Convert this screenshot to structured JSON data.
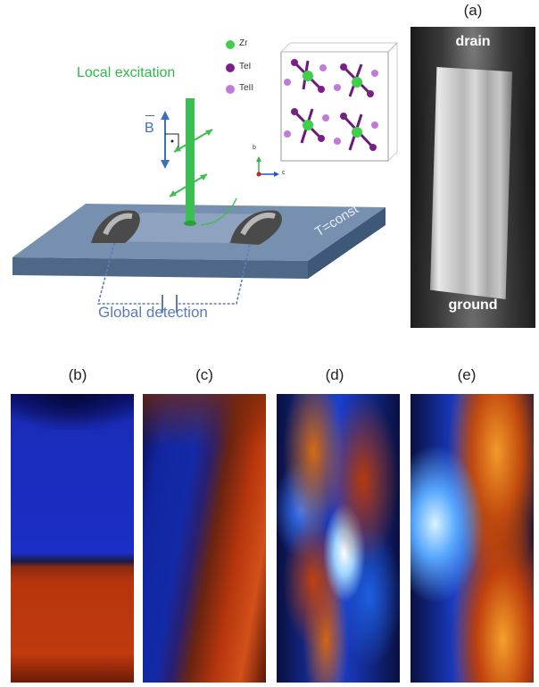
{
  "schematic": {
    "local_excitation": "Local excitation",
    "b_field": "B",
    "temperature": "T=const",
    "global_detection": "Global detection",
    "legend": {
      "zr": "Zr",
      "te1": "TeI",
      "te2": "TeII"
    },
    "axes": {
      "b": "b",
      "c": "c"
    }
  },
  "panel_a": {
    "label": "(a)",
    "drain": "drain",
    "ground": "ground"
  },
  "panels": [
    {
      "label": "(b)"
    },
    {
      "label": "(c)"
    },
    {
      "label": "(d)"
    },
    {
      "label": "(e)"
    }
  ],
  "colors": {
    "green": "#2fb84a",
    "plate": "#6d87a8",
    "blue_map": "#1a2fd0",
    "orange_map": "#c6380b"
  }
}
